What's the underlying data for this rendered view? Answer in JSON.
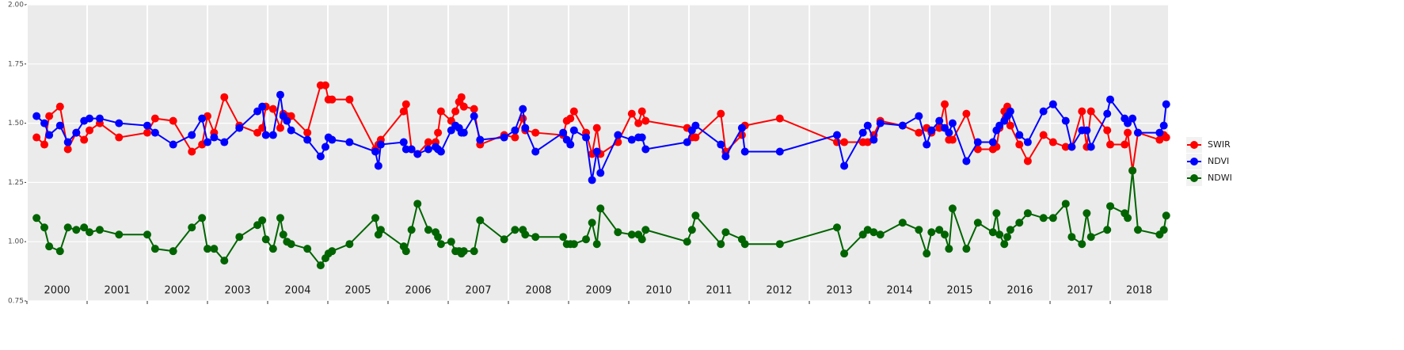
{
  "chart_data": {
    "type": "line",
    "x": [
      2000.16,
      2000.29,
      2000.37,
      2000.55,
      2000.68,
      2000.82,
      2000.95,
      2001.04,
      2001.21,
      2001.53,
      2002.0,
      2002.13,
      2002.43,
      2002.74,
      2002.91,
      2003.0,
      2003.11,
      2003.28,
      2003.53,
      2003.83,
      2003.91,
      2003.97,
      2004.09,
      2004.21,
      2004.26,
      2004.32,
      2004.39,
      2004.66,
      2004.88,
      2004.96,
      2005.01,
      2005.07,
      2005.36,
      2005.79,
      2005.84,
      2005.88,
      2006.26,
      2006.3,
      2006.39,
      2006.49,
      2006.67,
      2006.79,
      2006.83,
      2006.88,
      2007.05,
      2007.12,
      2007.18,
      2007.22,
      2007.26,
      2007.43,
      2007.53,
      2007.93,
      2008.11,
      2008.24,
      2008.28,
      2008.45,
      2008.91,
      2008.97,
      2009.03,
      2009.09,
      2009.29,
      2009.39,
      2009.47,
      2009.53,
      2009.82,
      2010.05,
      2010.16,
      2010.22,
      2010.28,
      2010.97,
      2011.05,
      2011.11,
      2011.53,
      2011.61,
      2011.88,
      2011.93,
      2012.51,
      2013.46,
      2013.58,
      2013.89,
      2013.97,
      2014.07,
      2014.18,
      2014.55,
      2014.82,
      2014.95,
      2015.03,
      2015.16,
      2015.25,
      2015.32,
      2015.38,
      2015.61,
      2015.8,
      2016.05,
      2016.11,
      2016.16,
      2016.24,
      2016.29,
      2016.34,
      2016.49,
      2016.63,
      2016.89,
      2017.05,
      2017.26,
      2017.36,
      2017.53,
      2017.61,
      2017.68,
      2017.95,
      2018.0,
      2018.24,
      2018.29,
      2018.37,
      2018.46,
      2018.82,
      2018.89,
      2018.93
    ],
    "series": [
      {
        "name": "SWIR",
        "color": "#ff0000",
        "values": [
          1.44,
          1.41,
          1.53,
          1.57,
          1.39,
          1.46,
          1.43,
          1.47,
          1.5,
          1.44,
          1.46,
          1.52,
          1.51,
          1.38,
          1.41,
          1.53,
          1.46,
          1.61,
          1.49,
          1.46,
          1.48,
          1.57,
          1.56,
          1.48,
          1.54,
          1.53,
          1.53,
          1.46,
          1.66,
          1.66,
          1.6,
          1.6,
          1.6,
          1.39,
          1.41,
          1.43,
          1.55,
          1.58,
          1.39,
          1.37,
          1.42,
          1.42,
          1.46,
          1.55,
          1.51,
          1.55,
          1.59,
          1.61,
          1.57,
          1.56,
          1.41,
          1.45,
          1.44,
          1.52,
          1.47,
          1.46,
          1.45,
          1.51,
          1.52,
          1.55,
          1.46,
          1.37,
          1.48,
          1.37,
          1.42,
          1.54,
          1.5,
          1.55,
          1.51,
          1.48,
          1.44,
          1.44,
          1.54,
          1.38,
          1.45,
          1.49,
          1.52,
          1.42,
          1.42,
          1.42,
          1.42,
          1.45,
          1.51,
          1.49,
          1.46,
          1.48,
          1.46,
          1.48,
          1.58,
          1.43,
          1.43,
          1.54,
          1.39,
          1.39,
          1.4,
          1.48,
          1.55,
          1.57,
          1.49,
          1.41,
          1.34,
          1.45,
          1.42,
          1.4,
          1.4,
          1.55,
          1.4,
          1.55,
          1.47,
          1.41,
          1.41,
          1.46,
          1.3,
          1.46,
          1.43,
          1.45,
          1.44
        ]
      },
      {
        "name": "NDVI",
        "color": "#0000ff",
        "values": [
          1.53,
          1.5,
          1.45,
          1.49,
          1.42,
          1.46,
          1.51,
          1.52,
          1.52,
          1.5,
          1.49,
          1.46,
          1.41,
          1.45,
          1.52,
          1.42,
          1.44,
          1.42,
          1.48,
          1.55,
          1.57,
          1.45,
          1.45,
          1.62,
          1.53,
          1.51,
          1.47,
          1.43,
          1.36,
          1.4,
          1.44,
          1.43,
          1.42,
          1.38,
          1.32,
          1.41,
          1.42,
          1.39,
          1.39,
          1.37,
          1.39,
          1.4,
          1.39,
          1.38,
          1.47,
          1.49,
          1.48,
          1.46,
          1.46,
          1.53,
          1.43,
          1.44,
          1.47,
          1.56,
          1.48,
          1.38,
          1.46,
          1.43,
          1.41,
          1.47,
          1.44,
          1.26,
          1.38,
          1.29,
          1.45,
          1.43,
          1.44,
          1.44,
          1.39,
          1.42,
          1.47,
          1.49,
          1.41,
          1.36,
          1.48,
          1.38,
          1.38,
          1.45,
          1.32,
          1.46,
          1.49,
          1.43,
          1.5,
          1.49,
          1.53,
          1.41,
          1.47,
          1.51,
          1.48,
          1.46,
          1.5,
          1.34,
          1.42,
          1.42,
          1.47,
          1.49,
          1.51,
          1.53,
          1.55,
          1.45,
          1.42,
          1.55,
          1.58,
          1.51,
          1.4,
          1.47,
          1.47,
          1.4,
          1.54,
          1.6,
          1.52,
          1.5,
          1.52,
          1.46,
          1.46,
          1.49,
          1.58
        ]
      },
      {
        "name": "NDWI",
        "color": "#006400",
        "values": [
          1.1,
          1.06,
          0.98,
          0.96,
          1.06,
          1.05,
          1.06,
          1.04,
          1.05,
          1.03,
          1.03,
          0.97,
          0.96,
          1.06,
          1.1,
          0.97,
          0.97,
          0.92,
          1.02,
          1.07,
          1.09,
          1.01,
          0.97,
          1.1,
          1.03,
          1.0,
          0.99,
          0.97,
          0.9,
          0.93,
          0.95,
          0.96,
          0.99,
          1.1,
          1.03,
          1.05,
          0.98,
          0.96,
          1.05,
          1.16,
          1.05,
          1.04,
          1.02,
          0.99,
          1.0,
          0.96,
          0.96,
          0.95,
          0.96,
          0.96,
          1.09,
          1.01,
          1.05,
          1.05,
          1.03,
          1.02,
          1.02,
          0.99,
          0.99,
          0.99,
          1.01,
          1.08,
          0.99,
          1.14,
          1.04,
          1.03,
          1.03,
          1.01,
          1.05,
          1.0,
          1.05,
          1.11,
          0.99,
          1.04,
          1.01,
          0.99,
          0.99,
          1.06,
          0.95,
          1.03,
          1.05,
          1.04,
          1.03,
          1.08,
          1.05,
          0.95,
          1.04,
          1.05,
          1.03,
          0.97,
          1.14,
          0.97,
          1.08,
          1.04,
          1.12,
          1.03,
          0.99,
          1.02,
          1.05,
          1.08,
          1.12,
          1.1,
          1.1,
          1.16,
          1.02,
          0.99,
          1.12,
          1.02,
          1.05,
          1.15,
          1.12,
          1.1,
          1.3,
          1.05,
          1.03,
          1.05,
          1.11
        ]
      }
    ],
    "years": [
      2000,
      2001,
      2002,
      2003,
      2004,
      2005,
      2006,
      2007,
      2008,
      2009,
      2010,
      2011,
      2012,
      2013,
      2014,
      2015,
      2016,
      2017,
      2018
    ],
    "xlim": [
      2000,
      2018.96
    ],
    "ylim": [
      0.75,
      2.0
    ],
    "yticks": [
      {
        "value": 0.75,
        "label": "0.75"
      },
      {
        "value": 1.0,
        "label": "1.00"
      },
      {
        "value": 1.25,
        "label": "1.25"
      },
      {
        "value": 1.5,
        "label": "1.50"
      },
      {
        "value": 1.75,
        "label": "1.75"
      },
      {
        "value": 2.0,
        "label": "2.00"
      }
    ],
    "grid": true,
    "legend": "right"
  }
}
